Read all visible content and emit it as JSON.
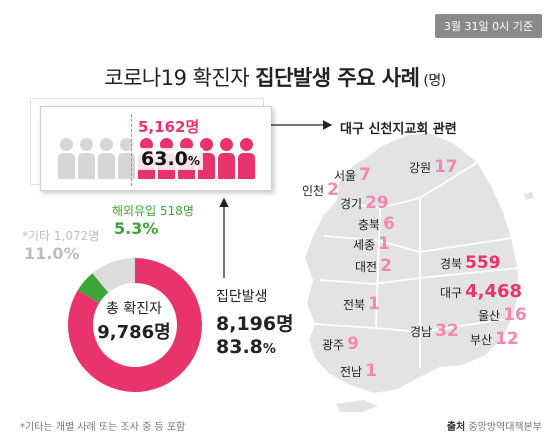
{
  "date_badge": "3월 31일 0시 기준",
  "title": {
    "part1": "코로나19 확진자 ",
    "part2": "집단발생 주요 사례",
    "unit": " (명)"
  },
  "colors": {
    "accent": "#e8336d",
    "overseas": "#3aa63a",
    "other": "#dcdcdc",
    "light_pink": "#f08ab0"
  },
  "people": {
    "total_icons": 10,
    "highlighted_icons": 6,
    "cluster_count": "5,162명",
    "cluster_pct": "63.0",
    "pct_sign": "%"
  },
  "arrow_label": "대구 신천지교회 관련",
  "donut": {
    "center_line1": "총 확진자",
    "center_line2": "9,786명"
  },
  "labels": {
    "overseas_name": "해외유입 518명",
    "overseas_pct": "5.3%",
    "other_name": "*기타 1,072명",
    "other_pct": "11.0%",
    "cluster_name": "집단발생",
    "cluster_num": "8,196명",
    "cluster_pct": "83.8",
    "pct_sign": "%"
  },
  "regions": [
    {
      "name": "서울",
      "value": "7"
    },
    {
      "name": "인천",
      "value": "2"
    },
    {
      "name": "경기",
      "value": "29"
    },
    {
      "name": "강원",
      "value": "17"
    },
    {
      "name": "충북",
      "value": "6"
    },
    {
      "name": "세종",
      "value": "1"
    },
    {
      "name": "대전",
      "value": "2"
    },
    {
      "name": "경북",
      "value": "559"
    },
    {
      "name": "대구",
      "value": "4,468"
    },
    {
      "name": "전북",
      "value": "1"
    },
    {
      "name": "울산",
      "value": "16"
    },
    {
      "name": "광주",
      "value": "9"
    },
    {
      "name": "경남",
      "value": "32"
    },
    {
      "name": "부산",
      "value": "12"
    },
    {
      "name": "전남",
      "value": "1"
    }
  ],
  "footnote": "*기타는 개별 사례 또는 조사 중 등 포함",
  "source": {
    "label": "출처",
    "text": " 중앙방역대책본부"
  },
  "chart_data": {
    "type": "pie",
    "title": "코로나19 확진자 집단발생 주요 사례 (명)",
    "total": 9786,
    "slices": [
      {
        "name": "집단발생",
        "value": 8196,
        "pct": 83.8
      },
      {
        "name": "해외유입",
        "value": 518,
        "pct": 5.3
      },
      {
        "name": "*기타",
        "value": 1072,
        "pct": 11.0
      }
    ],
    "sub_breakdown": {
      "name": "대구 신천지교회 관련",
      "value": 5162,
      "pct_of_cluster": 63.0
    },
    "regional": [
      {
        "region": "서울",
        "value": 7
      },
      {
        "region": "인천",
        "value": 2
      },
      {
        "region": "경기",
        "value": 29
      },
      {
        "region": "강원",
        "value": 17
      },
      {
        "region": "충북",
        "value": 6
      },
      {
        "region": "세종",
        "value": 1
      },
      {
        "region": "대전",
        "value": 2
      },
      {
        "region": "경북",
        "value": 559
      },
      {
        "region": "대구",
        "value": 4468
      },
      {
        "region": "전북",
        "value": 1
      },
      {
        "region": "울산",
        "value": 16
      },
      {
        "region": "광주",
        "value": 9
      },
      {
        "region": "경남",
        "value": 32
      },
      {
        "region": "부산",
        "value": 12
      },
      {
        "region": "전남",
        "value": 1
      }
    ]
  }
}
